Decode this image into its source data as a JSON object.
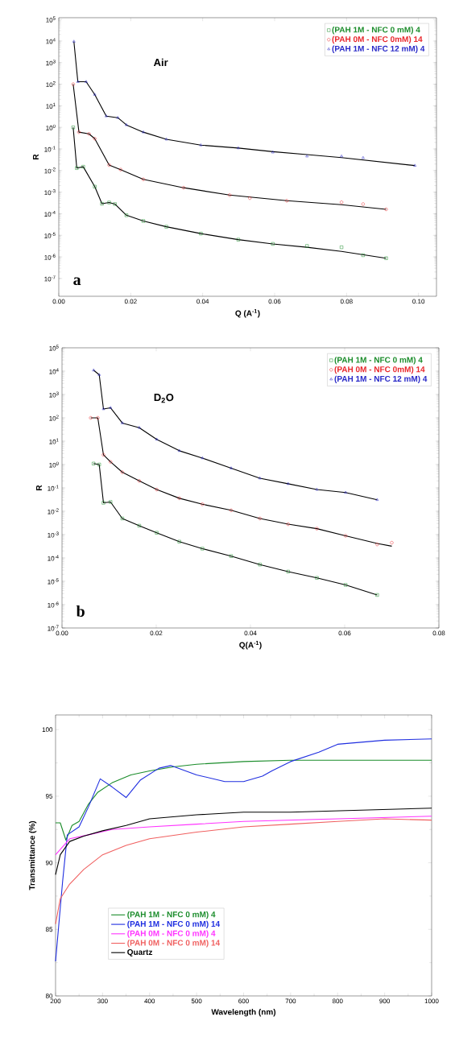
{
  "chart_data": [
    {
      "type": "scatter",
      "xlabel": "Q (A$^{-1}$)",
      "ylabel": "R",
      "log": "y",
      "legend": "top right",
      "annotations": [
        "Air",
        "a"
      ],
      "xlim": [
        0,
        0.105
      ],
      "ylim": [
        1.5e-08,
        120000.0
      ],
      "xticks": [
        {
          "value": 0,
          "label": "0.00"
        },
        {
          "value": 0.02,
          "label": "0.02"
        },
        {
          "value": 0.04,
          "label": "0.04"
        },
        {
          "value": 0.06,
          "label": "0.06"
        },
        {
          "value": 0.08,
          "label": "0.08"
        },
        {
          "value": 0.1,
          "label": "0.10"
        }
      ],
      "yticks": [
        {
          "value": 1e-07,
          "label": "10$^{-7}$"
        },
        {
          "value": 1e-06,
          "label": "10$^{-6}$"
        },
        {
          "value": 1e-05,
          "label": "10$^{-5}$"
        },
        {
          "value": 0.0001,
          "label": "10$^{-4}$"
        },
        {
          "value": 0.001,
          "label": "10$^{-3}$"
        },
        {
          "value": 0.01,
          "label": "10$^{-2}$"
        },
        {
          "value": 0.1,
          "label": "10$^{-1}$"
        },
        {
          "value": 1,
          "label": "10$^{0}$"
        },
        {
          "value": 10,
          "label": "10$^{1}$"
        },
        {
          "value": 100,
          "label": "10$^{2}$"
        },
        {
          "value": 1000,
          "label": "10$^{3}$"
        },
        {
          "value": 10000,
          "label": "10$^{4}$"
        },
        {
          "value": 100000,
          "label": "10$^{5}$"
        }
      ],
      "series": [
        {
          "name": "(PAH 1M - NFC 0 mM) 4",
          "type": "scatter",
          "marker": "square",
          "color": "#1a8c2a",
          "x": [
            0.004,
            0.005,
            0.0068,
            0.01,
            0.012,
            0.014,
            0.0156,
            0.0188,
            0.0235,
            0.0299,
            0.0395,
            0.0499,
            0.0595,
            0.069,
            0.0786,
            0.0846,
            0.091
          ],
          "values": [
            1,
            0.013,
            0.015,
            0.0018,
            0.00029,
            0.00033,
            0.00028,
            8.5e-05,
            4.6e-05,
            2.5e-05,
            1.2e-05,
            6.3e-06,
            4e-06,
            3.2e-06,
            2.8e-06,
            1.2e-06,
            8.7e-07
          ]
        },
        {
          "name": "(PAH 0M - NFC 0mM) 14",
          "type": "scatter",
          "marker": "circle",
          "color": "#e8262b",
          "x": [
            0.004,
            0.0056,
            0.0084,
            0.01,
            0.014,
            0.0172,
            0.0235,
            0.0347,
            0.0475,
            0.0531,
            0.0634,
            0.0786,
            0.0846,
            0.091
          ],
          "values": [
            100,
            0.6,
            0.5,
            0.3,
            0.018,
            0.011,
            0.0039,
            0.0016,
            0.00073,
            0.00053,
            0.0004,
            0.00034,
            0.00028,
            0.00016
          ]
        },
        {
          "name": "(PAH 1M - NFC 12 mM) 4",
          "type": "scatter",
          "marker": "triangle",
          "color": "#2a2ac8",
          "x": [
            0.0042,
            0.0053,
            0.0076,
            0.01,
            0.0132,
            0.0164,
            0.0188,
            0.0235,
            0.0299,
            0.0395,
            0.0499,
            0.0595,
            0.069,
            0.0786,
            0.0846,
            0.099
          ],
          "values": [
            9500,
            130,
            130,
            33,
            3.3,
            2.8,
            1.3,
            0.6,
            0.28,
            0.15,
            0.11,
            0.07,
            0.046,
            0.046,
            0.039,
            0.017
          ]
        },
        {
          "type": "line",
          "color": "#000000",
          "x": [
            0.004,
            0.005,
            0.0068,
            0.01,
            0.012,
            0.014,
            0.0156,
            0.0188,
            0.0235,
            0.0299,
            0.0395,
            0.0499,
            0.0595,
            0.069,
            0.0786,
            0.091
          ],
          "values": [
            1,
            0.013,
            0.015,
            0.0018,
            0.00029,
            0.00033,
            0.00028,
            8.5e-05,
            4.6e-05,
            2.5e-05,
            1.2e-05,
            6.3e-06,
            4e-06,
            2.8e-06,
            1.8e-06,
            8.7e-07
          ]
        },
        {
          "type": "line",
          "color": "#000000",
          "x": [
            0.004,
            0.0056,
            0.0084,
            0.01,
            0.014,
            0.0172,
            0.0235,
            0.0347,
            0.0475,
            0.0634,
            0.0786,
            0.091
          ],
          "values": [
            100,
            0.6,
            0.5,
            0.3,
            0.018,
            0.011,
            0.0039,
            0.0016,
            0.00073,
            0.0004,
            0.00026,
            0.00016
          ]
        },
        {
          "type": "line",
          "color": "#000000",
          "x": [
            0.0042,
            0.0053,
            0.0076,
            0.01,
            0.0132,
            0.0164,
            0.0188,
            0.0235,
            0.0299,
            0.0395,
            0.0499,
            0.0595,
            0.069,
            0.0786,
            0.099
          ],
          "values": [
            9500,
            130,
            130,
            33,
            3.3,
            2.8,
            1.3,
            0.6,
            0.28,
            0.15,
            0.11,
            0.075,
            0.055,
            0.04,
            0.017
          ]
        }
      ]
    },
    {
      "type": "scatter",
      "xlabel": "Q(A$^{-1}$)",
      "ylabel": "R",
      "log": "y",
      "legend": "top right",
      "annotations": [
        "D$_{2}$O",
        "b"
      ],
      "xlim": [
        0,
        0.08
      ],
      "ylim": [
        1e-07,
        100000.0
      ],
      "xticks": [
        {
          "value": 0,
          "label": "0.00"
        },
        {
          "value": 0.02,
          "label": "0.02"
        },
        {
          "value": 0.04,
          "label": "0.04"
        },
        {
          "value": 0.06,
          "label": "0.06"
        },
        {
          "value": 0.08,
          "label": "0.08"
        }
      ],
      "yticks": [
        {
          "value": 1e-07,
          "label": "10$^{-7}$"
        },
        {
          "value": 1e-06,
          "label": "10$^{-6}$"
        },
        {
          "value": 1e-05,
          "label": "10$^{-5}$"
        },
        {
          "value": 0.0001,
          "label": "10$^{-4}$"
        },
        {
          "value": 0.001,
          "label": "10$^{-3}$"
        },
        {
          "value": 0.01,
          "label": "10$^{-2}$"
        },
        {
          "value": 0.1,
          "label": "10$^{-1}$"
        },
        {
          "value": 1,
          "label": "10$^{0}$"
        },
        {
          "value": 10,
          "label": "10$^{1}$"
        },
        {
          "value": 100,
          "label": "10$^{2}$"
        },
        {
          "value": 1000,
          "label": "10$^{3}$"
        },
        {
          "value": 10000,
          "label": "10$^{4}$"
        },
        {
          "value": 100000,
          "label": "10$^{5}$"
        }
      ],
      "series": [
        {
          "name": "(PAH 1M - NFC 0 mM) 4",
          "type": "scatter",
          "marker": "square",
          "color": "#1a8c2a",
          "x": [
            0.0067,
            0.0079,
            0.0088,
            0.0103,
            0.0128,
            0.0164,
            0.0201,
            0.0249,
            0.0298,
            0.0359,
            0.042,
            0.048,
            0.0541,
            0.0602,
            0.0669
          ],
          "values": [
            1.1,
            1,
            0.023,
            0.025,
            0.0049,
            0.0024,
            0.0012,
            0.0005,
            0.00025,
            0.00012,
            5.2e-05,
            2.6e-05,
            1.4e-05,
            7e-06,
            2.6e-06
          ]
        },
        {
          "name": "(PAH 0M - NFC 0mM) 14",
          "type": "scatter",
          "marker": "circle",
          "color": "#e8262b",
          "x": [
            0.0061,
            0.0076,
            0.0088,
            0.0103,
            0.0128,
            0.0164,
            0.0201,
            0.0249,
            0.0298,
            0.0359,
            0.042,
            0.048,
            0.0541,
            0.0602,
            0.0669,
            0.07
          ],
          "values": [
            100,
            100,
            2.6,
            1.3,
            0.47,
            0.2,
            0.085,
            0.036,
            0.02,
            0.011,
            0.0049,
            0.0028,
            0.0018,
            0.00089,
            0.00038,
            0.00045
          ]
        },
        {
          "name": "(PAH 1M - NFC 12 mM) 4",
          "type": "scatter",
          "marker": "triangle",
          "color": "#2a2ac8",
          "x": [
            0.0067,
            0.0079,
            0.0088,
            0.0103,
            0.0128,
            0.0164,
            0.0201,
            0.0249,
            0.0298,
            0.0359,
            0.042,
            0.048,
            0.0541,
            0.0602,
            0.0669
          ],
          "values": [
            11000,
            7000,
            240,
            270,
            60,
            38,
            12,
            3.9,
            1.9,
            0.7,
            0.26,
            0.15,
            0.085,
            0.063,
            0.031
          ]
        },
        {
          "type": "line",
          "color": "#000000",
          "x": [
            0.0067,
            0.0079,
            0.0088,
            0.0103,
            0.0128,
            0.0164,
            0.0201,
            0.0249,
            0.0298,
            0.0359,
            0.042,
            0.048,
            0.0541,
            0.0602,
            0.0669
          ],
          "values": [
            1.1,
            1,
            0.023,
            0.025,
            0.0049,
            0.0024,
            0.0012,
            0.0005,
            0.00025,
            0.00012,
            5.2e-05,
            2.6e-05,
            1.4e-05,
            7e-06,
            2.6e-06
          ]
        },
        {
          "type": "line",
          "color": "#000000",
          "x": [
            0.0061,
            0.0076,
            0.0088,
            0.0103,
            0.0128,
            0.0164,
            0.0201,
            0.0249,
            0.0298,
            0.0359,
            0.042,
            0.048,
            0.0541,
            0.0602,
            0.0669,
            0.07
          ],
          "values": [
            100,
            100,
            2.6,
            1.3,
            0.47,
            0.2,
            0.085,
            0.036,
            0.02,
            0.011,
            0.0049,
            0.0028,
            0.0018,
            0.00089,
            0.00042,
            0.00032
          ]
        },
        {
          "type": "line",
          "color": "#000000",
          "x": [
            0.0067,
            0.0079,
            0.0088,
            0.0103,
            0.0128,
            0.0164,
            0.0201,
            0.0249,
            0.0298,
            0.0359,
            0.042,
            0.048,
            0.0541,
            0.0602,
            0.0669
          ],
          "values": [
            11000,
            7000,
            240,
            270,
            60,
            38,
            12,
            3.9,
            1.9,
            0.7,
            0.26,
            0.15,
            0.085,
            0.063,
            0.031
          ]
        }
      ]
    },
    {
      "type": "line",
      "xlabel": "Wavelength (nm)",
      "ylabel": "Transmittance (%)",
      "legend": "bottom",
      "xlim": [
        200,
        1000
      ],
      "ylim": [
        80,
        101.1
      ],
      "xticks": [
        200,
        300,
        400,
        500,
        600,
        700,
        800,
        900,
        1000
      ],
      "yticks": [
        80,
        85,
        90,
        95,
        100
      ],
      "series": [
        {
          "name": "(PAH 1M - NFC 0 mM) 4",
          "color": "#1a8c2a",
          "x": [
            200,
            210,
            222,
            235,
            250,
            270,
            290,
            320,
            360,
            400,
            450,
            500,
            600,
            700,
            800,
            900,
            1000
          ],
          "values": [
            93,
            93,
            91.7,
            92.8,
            93.1,
            94.4,
            95.3,
            96,
            96.6,
            96.9,
            97.2,
            97.4,
            97.6,
            97.7,
            97.7,
            97.7,
            97.7
          ]
        },
        {
          "name": "(PAH 1M - NFC 0 mM) 14",
          "color": "#1f2ee0",
          "x": [
            200,
            215,
            225,
            250,
            270,
            295,
            320,
            350,
            380,
            420,
            445,
            500,
            560,
            600,
            640,
            660,
            700,
            760,
            800,
            900,
            1000
          ],
          "values": [
            82.6,
            88.6,
            92.1,
            92.7,
            94.2,
            96.3,
            95.7,
            94.9,
            96.2,
            97.1,
            97.3,
            96.6,
            96.1,
            96.1,
            96.5,
            96.9,
            97.6,
            98.3,
            98.9,
            99.2,
            99.3
          ]
        },
        {
          "name": "(PAH 0M - NFC 0 mM) 4",
          "color": "#ff33ff",
          "x": [
            200,
            230,
            270,
            320,
            400,
            500,
            600,
            700,
            800,
            900,
            1000
          ],
          "values": [
            90.6,
            91.8,
            92.1,
            92.5,
            92.7,
            92.9,
            93.1,
            93.2,
            93.3,
            93.4,
            93.5
          ]
        },
        {
          "name": "(PAH 0M - NFC 0 mM) 14",
          "color": "#f06060",
          "x": [
            200,
            210,
            230,
            260,
            300,
            350,
            400,
            500,
            600,
            700,
            800,
            900,
            1000
          ],
          "values": [
            85.4,
            87.3,
            88.4,
            89.5,
            90.6,
            91.3,
            91.8,
            92.3,
            92.7,
            92.9,
            93.1,
            93.3,
            93.2
          ]
        },
        {
          "name": "Quartz",
          "color": "#000000",
          "x": [
            200,
            210,
            230,
            260,
            300,
            350,
            400,
            500,
            600,
            700,
            800,
            900,
            1000
          ],
          "values": [
            89.1,
            90.6,
            91.6,
            92,
            92.4,
            92.8,
            93.3,
            93.6,
            93.8,
            93.8,
            93.9,
            94,
            94.1
          ]
        }
      ]
    }
  ]
}
